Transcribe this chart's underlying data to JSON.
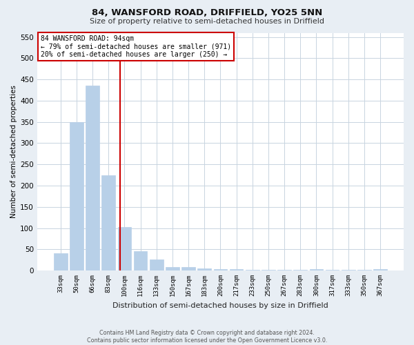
{
  "title1": "84, WANSFORD ROAD, DRIFFIELD, YO25 5NN",
  "title2": "Size of property relative to semi-detached houses in Driffield",
  "xlabel": "Distribution of semi-detached houses by size in Driffield",
  "ylabel": "Number of semi-detached properties",
  "categories": [
    "33sqm",
    "50sqm",
    "66sqm",
    "83sqm",
    "100sqm",
    "116sqm",
    "133sqm",
    "150sqm",
    "167sqm",
    "183sqm",
    "200sqm",
    "217sqm",
    "233sqm",
    "250sqm",
    "267sqm",
    "283sqm",
    "300sqm",
    "317sqm",
    "333sqm",
    "350sqm",
    "367sqm"
  ],
  "values": [
    40,
    350,
    435,
    225,
    103,
    45,
    26,
    9,
    9,
    5,
    4,
    3,
    2,
    2,
    1,
    1,
    3,
    1,
    1,
    1,
    4
  ],
  "bar_color": "#b8d0e8",
  "bar_edgecolor": "#b8d0e8",
  "vline_color": "#cc0000",
  "annotation_title": "84 WANSFORD ROAD: 94sqm",
  "annotation_line1": "← 79% of semi-detached houses are smaller (971)",
  "annotation_line2": "20% of semi-detached houses are larger (250) →",
  "annotation_box_color": "#cc0000",
  "ylim": [
    0,
    560
  ],
  "yticks": [
    0,
    50,
    100,
    150,
    200,
    250,
    300,
    350,
    400,
    450,
    500,
    550
  ],
  "footer1": "Contains HM Land Registry data © Crown copyright and database right 2024.",
  "footer2": "Contains public sector information licensed under the Open Government Licence v3.0.",
  "bg_color": "#e8eef4",
  "plot_bg_color": "#ffffff",
  "grid_color": "#c8d4e0"
}
